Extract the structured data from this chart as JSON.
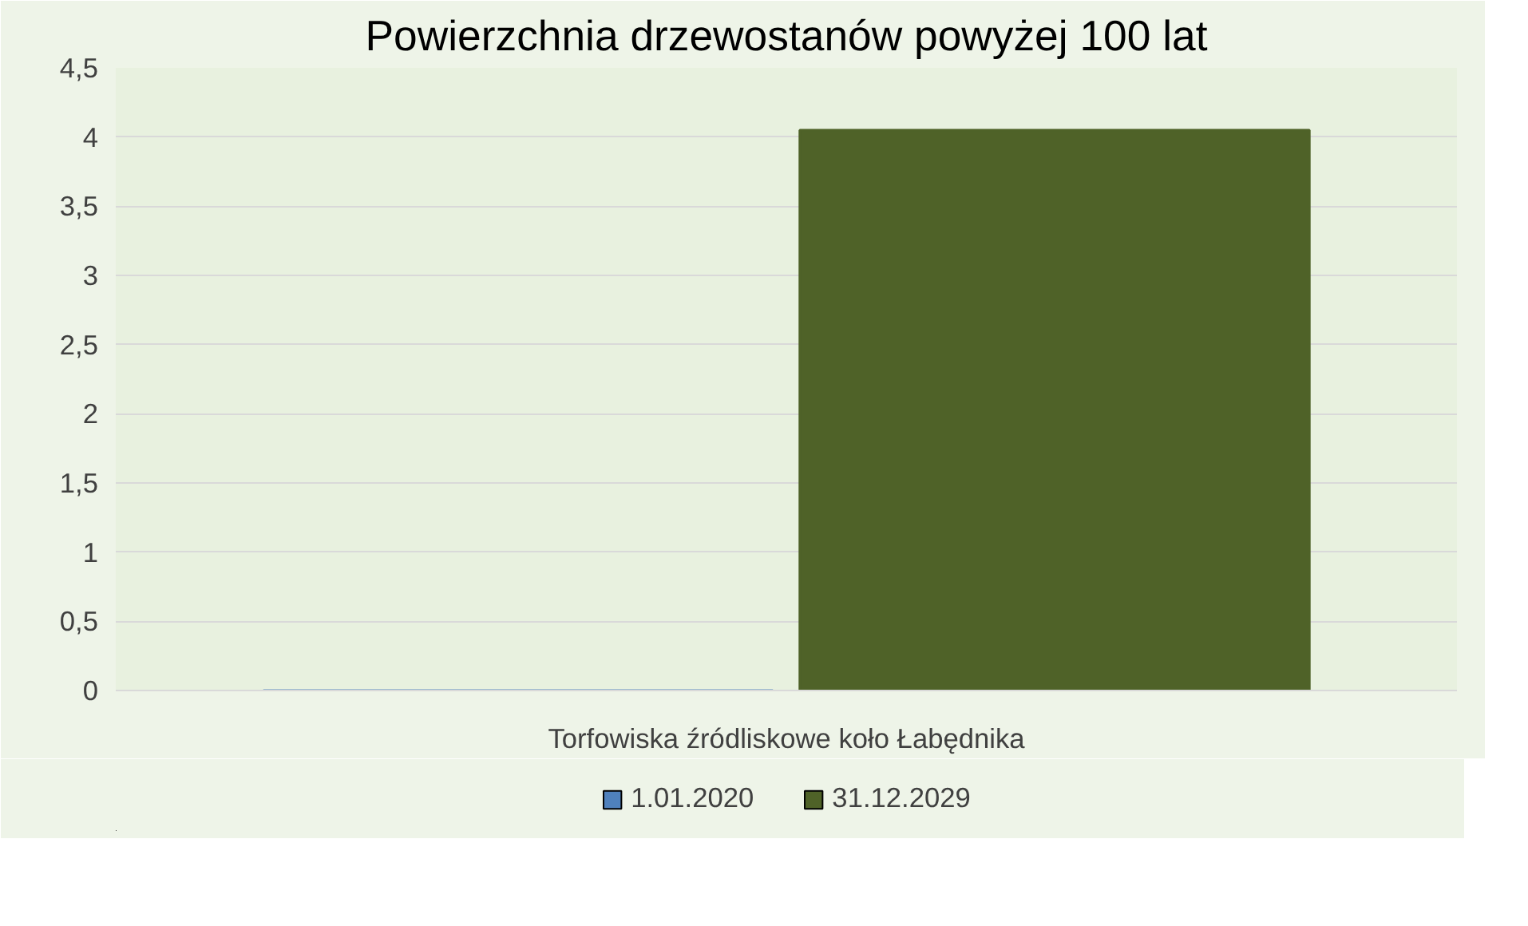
{
  "chart_data": {
    "type": "bar",
    "title": "Powierzchnia drzewostanów powyżej 100 lat",
    "categories": [
      "Torfowiska źródliskowe koło Łabędnika"
    ],
    "series": [
      {
        "name": "1.01.2020",
        "color": "#4f81bd",
        "values": [
          0
        ]
      },
      {
        "name": "31.12.2029",
        "color": "#4f6228",
        "values": [
          4.05
        ]
      }
    ],
    "ylim": [
      0,
      4.5
    ],
    "yticks": [
      0,
      {
        "value": 0.5,
        "label": "0,5"
      },
      1,
      {
        "value": 1.5,
        "label": "1,5"
      },
      2,
      {
        "value": 2.5,
        "label": "2,5"
      },
      3,
      {
        "value": 3.5,
        "label": "3,5"
      },
      4,
      {
        "value": 4.5,
        "label": "4,5"
      }
    ],
    "grid": "y",
    "legend": "bottom"
  }
}
